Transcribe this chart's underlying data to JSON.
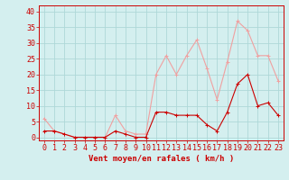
{
  "title": "",
  "xlabel": "Vent moyen/en rafales ( km/h )",
  "background_color": "#d4efef",
  "grid_color": "#aed8d8",
  "x_ticks": [
    0,
    1,
    2,
    3,
    4,
    5,
    6,
    7,
    8,
    9,
    10,
    11,
    12,
    13,
    14,
    15,
    16,
    17,
    18,
    19,
    20,
    21,
    22,
    23
  ],
  "y_ticks": [
    0,
    5,
    10,
    15,
    20,
    25,
    30,
    35,
    40
  ],
  "ylim": [
    -1,
    42
  ],
  "xlim": [
    -0.5,
    23.5
  ],
  "mean_wind": [
    2,
    2,
    1,
    0,
    0,
    0,
    0,
    2,
    1,
    0,
    0,
    8,
    8,
    7,
    7,
    7,
    4,
    2,
    8,
    17,
    20,
    10,
    11,
    7
  ],
  "gust_wind": [
    6,
    2,
    1,
    0,
    0,
    0,
    0,
    7,
    2,
    1,
    1,
    20,
    26,
    20,
    26,
    31,
    22,
    12,
    24,
    37,
    34,
    26,
    26,
    18
  ],
  "mean_color": "#cc0000",
  "gust_color": "#f0a0a0",
  "line_width": 0.8,
  "marker_size": 2.5,
  "xlabel_fontsize": 6.5,
  "tick_fontsize": 6,
  "tick_color": "#cc0000",
  "axis_color": "#cc0000"
}
